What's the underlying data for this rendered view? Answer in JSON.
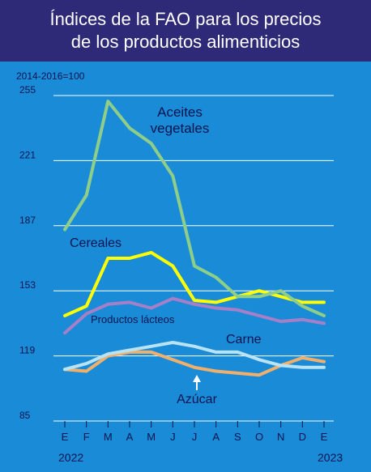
{
  "header": {
    "title_line1": "Índices de la FAO para los precios",
    "title_line2": "de los productos alimenticios"
  },
  "colors": {
    "background": "#1a8bd6",
    "header": "#2e2a78",
    "axis_text": "#0a1450",
    "grid": "#ffffff",
    "aceites": "#8fce89",
    "cereales": "#ffff00",
    "lacteos": "#a57fc8",
    "carne": "#b8e3f5",
    "azucar": "#f0b06c"
  },
  "chart_data": {
    "type": "line",
    "unit_label": "2014-2016=100",
    "yticks": [
      255,
      221,
      187,
      153,
      119,
      85
    ],
    "ylim": [
      85,
      255
    ],
    "categories": [
      "E",
      "F",
      "M",
      "A",
      "M",
      "J",
      "J",
      "A",
      "S",
      "O",
      "N",
      "D",
      "E"
    ],
    "year_start": "2022",
    "year_end": "2023",
    "grid": true,
    "series": [
      {
        "name": "Aceites vegetales",
        "label_line1": "Aceites",
        "label_line2": "vegetales",
        "color_key": "aceites",
        "values": [
          185,
          203,
          252,
          238,
          230,
          213,
          166,
          160,
          150,
          150,
          153,
          145,
          140
        ]
      },
      {
        "name": "Cereales",
        "color_key": "cereales",
        "values": [
          140,
          145,
          170,
          170,
          173,
          166,
          148,
          147,
          150,
          153,
          150,
          147,
          147
        ]
      },
      {
        "name": "Productos lácteos",
        "color_key": "lacteos",
        "values": [
          131,
          141,
          146,
          147,
          144,
          149,
          146,
          144,
          143,
          140,
          137,
          138,
          136
        ]
      },
      {
        "name": "Carne",
        "color_key": "carne",
        "values": [
          112,
          115,
          120,
          122,
          124,
          126,
          124,
          121,
          121,
          117,
          114,
          113,
          113
        ]
      },
      {
        "name": "Azúcar",
        "color_key": "azucar",
        "values": [
          112,
          111,
          119,
          121,
          121,
          117,
          113,
          111,
          110,
          109,
          114,
          118,
          116
        ]
      }
    ]
  }
}
